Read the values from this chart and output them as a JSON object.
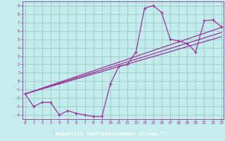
{
  "bg_color": "#c5eced",
  "line_color": "#993399",
  "grid_color": "#9ecece",
  "label_bar_color": "#550055",
  "xlim": [
    -0.3,
    23.3
  ],
  "ylim": [
    -4.5,
    9.5
  ],
  "xtick_vals": [
    0,
    1,
    2,
    3,
    4,
    5,
    6,
    7,
    8,
    9,
    10,
    11,
    12,
    13,
    14,
    15,
    16,
    17,
    18,
    19,
    20,
    21,
    22,
    23
  ],
  "ytick_vals": [
    -4,
    -3,
    -2,
    -1,
    0,
    1,
    2,
    3,
    4,
    5,
    6,
    7,
    8,
    9
  ],
  "xlabel": "Windchill (Refroidissement éolien,°C)",
  "curve_x": [
    0,
    1,
    2,
    3,
    4,
    5,
    6,
    7,
    8,
    9,
    10,
    11,
    12,
    13,
    14,
    15,
    16,
    17,
    18,
    19,
    20,
    21,
    22,
    23
  ],
  "curve_y": [
    -1.5,
    -3.0,
    -2.5,
    -2.5,
    -4.0,
    -3.5,
    -3.8,
    -4.0,
    -4.2,
    -4.2,
    -0.3,
    1.8,
    2.0,
    3.5,
    8.7,
    9.0,
    8.2,
    5.0,
    4.8,
    4.5,
    3.5,
    7.2,
    7.3,
    6.5
  ],
  "trend1_x": [
    0,
    23
  ],
  "trend1_y": [
    -1.5,
    6.4
  ],
  "trend2_x": [
    0,
    23
  ],
  "trend2_y": [
    -1.5,
    5.8
  ],
  "trend3_x": [
    0,
    23
  ],
  "trend3_y": [
    -1.5,
    5.3
  ]
}
